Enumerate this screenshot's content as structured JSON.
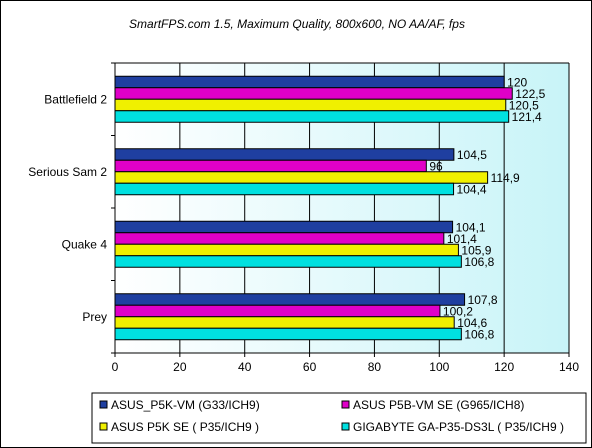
{
  "chart_data": {
    "type": "bar",
    "orientation": "horizontal",
    "title": "SmartFPS.com 1.5, Maximum Quality, 800x600, NO AA/AF, fps",
    "categories": [
      "Battlefield 2",
      "Serious Sam 2",
      "Quake 4",
      "Prey"
    ],
    "series": [
      {
        "name": "ASUS_P5K-VM (G33/ICH9)",
        "color": "#1f3fa0",
        "values": [
          120,
          104.5,
          104.1,
          107.8
        ],
        "labels": [
          "120",
          "104,5",
          "104,1",
          "107,8"
        ]
      },
      {
        "name": "ASUS P5B-VM SE (G965/ICH8)",
        "color": "#e000c8",
        "values": [
          122.5,
          96,
          101.4,
          100.2
        ],
        "labels": [
          "122,5",
          "96",
          "101,4",
          "100,2"
        ]
      },
      {
        "name": "ASUS P5K SE ( P35/ICH9 )",
        "color": "#f0f000",
        "values": [
          120.5,
          114.9,
          105.9,
          104.6
        ],
        "labels": [
          "120,5",
          "114,9",
          "105,9",
          "104,6"
        ]
      },
      {
        "name": "GIGABYTE GA-P35-DS3L ( P35/ICH9 )",
        "color": "#00e0e0",
        "values": [
          121.4,
          104.4,
          106.8,
          106.8
        ],
        "labels": [
          "121,4",
          "104,4",
          "106,8",
          "106,8"
        ]
      }
    ],
    "xlim": [
      0,
      140
    ],
    "xticks": [
      0,
      20,
      40,
      60,
      80,
      100,
      120,
      140
    ],
    "xtick_labels": [
      "0",
      "20",
      "40",
      "60",
      "80",
      "100",
      "120",
      "140"
    ],
    "grid": "vertical",
    "legend_position": "bottom",
    "colors": {
      "plot_bg_start": "#ffffff",
      "plot_bg_end": "#c8f4f8",
      "grid": "#000000"
    }
  }
}
